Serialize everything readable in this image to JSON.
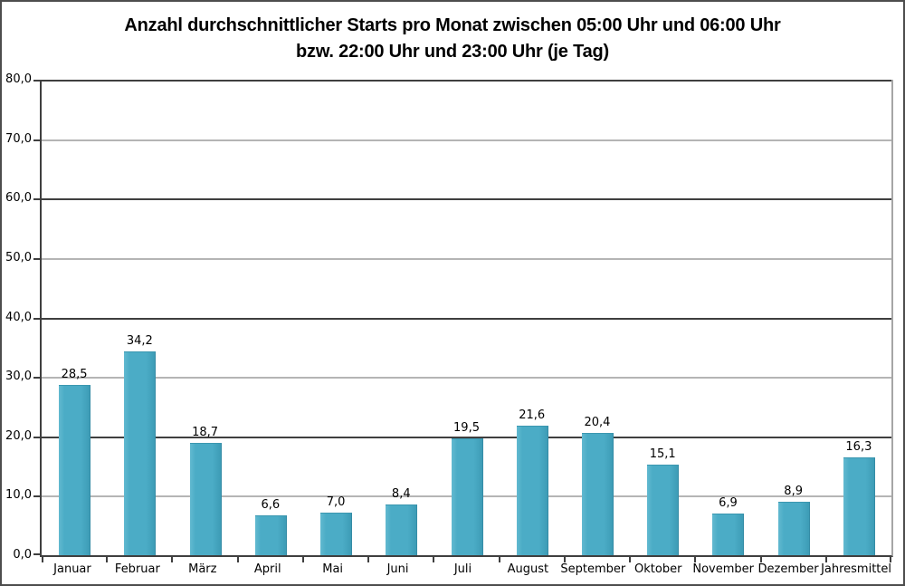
{
  "chart_data": {
    "type": "bar",
    "title": "Anzahl durchschnittlicher Starts pro Monat zwischen 05:00 Uhr und 06:00 Uhr bzw. 22:00 Uhr und 23:00 Uhr (je Tag)",
    "title_lines": [
      "Anzahl durchschnittlicher Starts pro Monat zwischen 05:00 Uhr und 06:00 Uhr",
      "bzw. 22:00 Uhr und 23:00 Uhr (je Tag)"
    ],
    "categories": [
      "Januar",
      "Februar",
      "März",
      "April",
      "Mai",
      "Juni",
      "Juli",
      "August",
      "September",
      "Oktober",
      "November",
      "Dezember",
      "Jahresmittel"
    ],
    "values": [
      28.5,
      34.2,
      18.7,
      6.6,
      7.0,
      8.4,
      19.5,
      21.6,
      20.4,
      15.1,
      6.9,
      8.9,
      16.3
    ],
    "value_labels": [
      "28,5",
      "34,2",
      "18,7",
      "6,6",
      "7,0",
      "8,4",
      "19,5",
      "21,6",
      "20,4",
      "15,1",
      "6,9",
      "8,9",
      "16,3"
    ],
    "xlabel": "",
    "ylabel": "",
    "ylim": [
      0,
      80
    ],
    "y_tick_step": 10,
    "y_ticks": [
      0,
      10,
      20,
      30,
      40,
      50,
      60,
      70,
      80
    ],
    "y_tick_labels": [
      "0,0",
      "10,0",
      "20,0",
      "30,0",
      "40,0",
      "50,0",
      "60,0",
      "70,0",
      "80,0"
    ],
    "grid": "horizontal, major dark every 20, minor light every 10",
    "legend": "none",
    "colors": {
      "bar_fill": "#4bacc6",
      "bar_border": "#358ca6",
      "gridline_major": "#3f3f3f",
      "gridline_minor": "#b5b5b5",
      "axis_line": "#3f3f3f",
      "plot_right_border": "#a6a6a6",
      "chart_border": "#4d4d4d",
      "text": "#000000"
    }
  }
}
